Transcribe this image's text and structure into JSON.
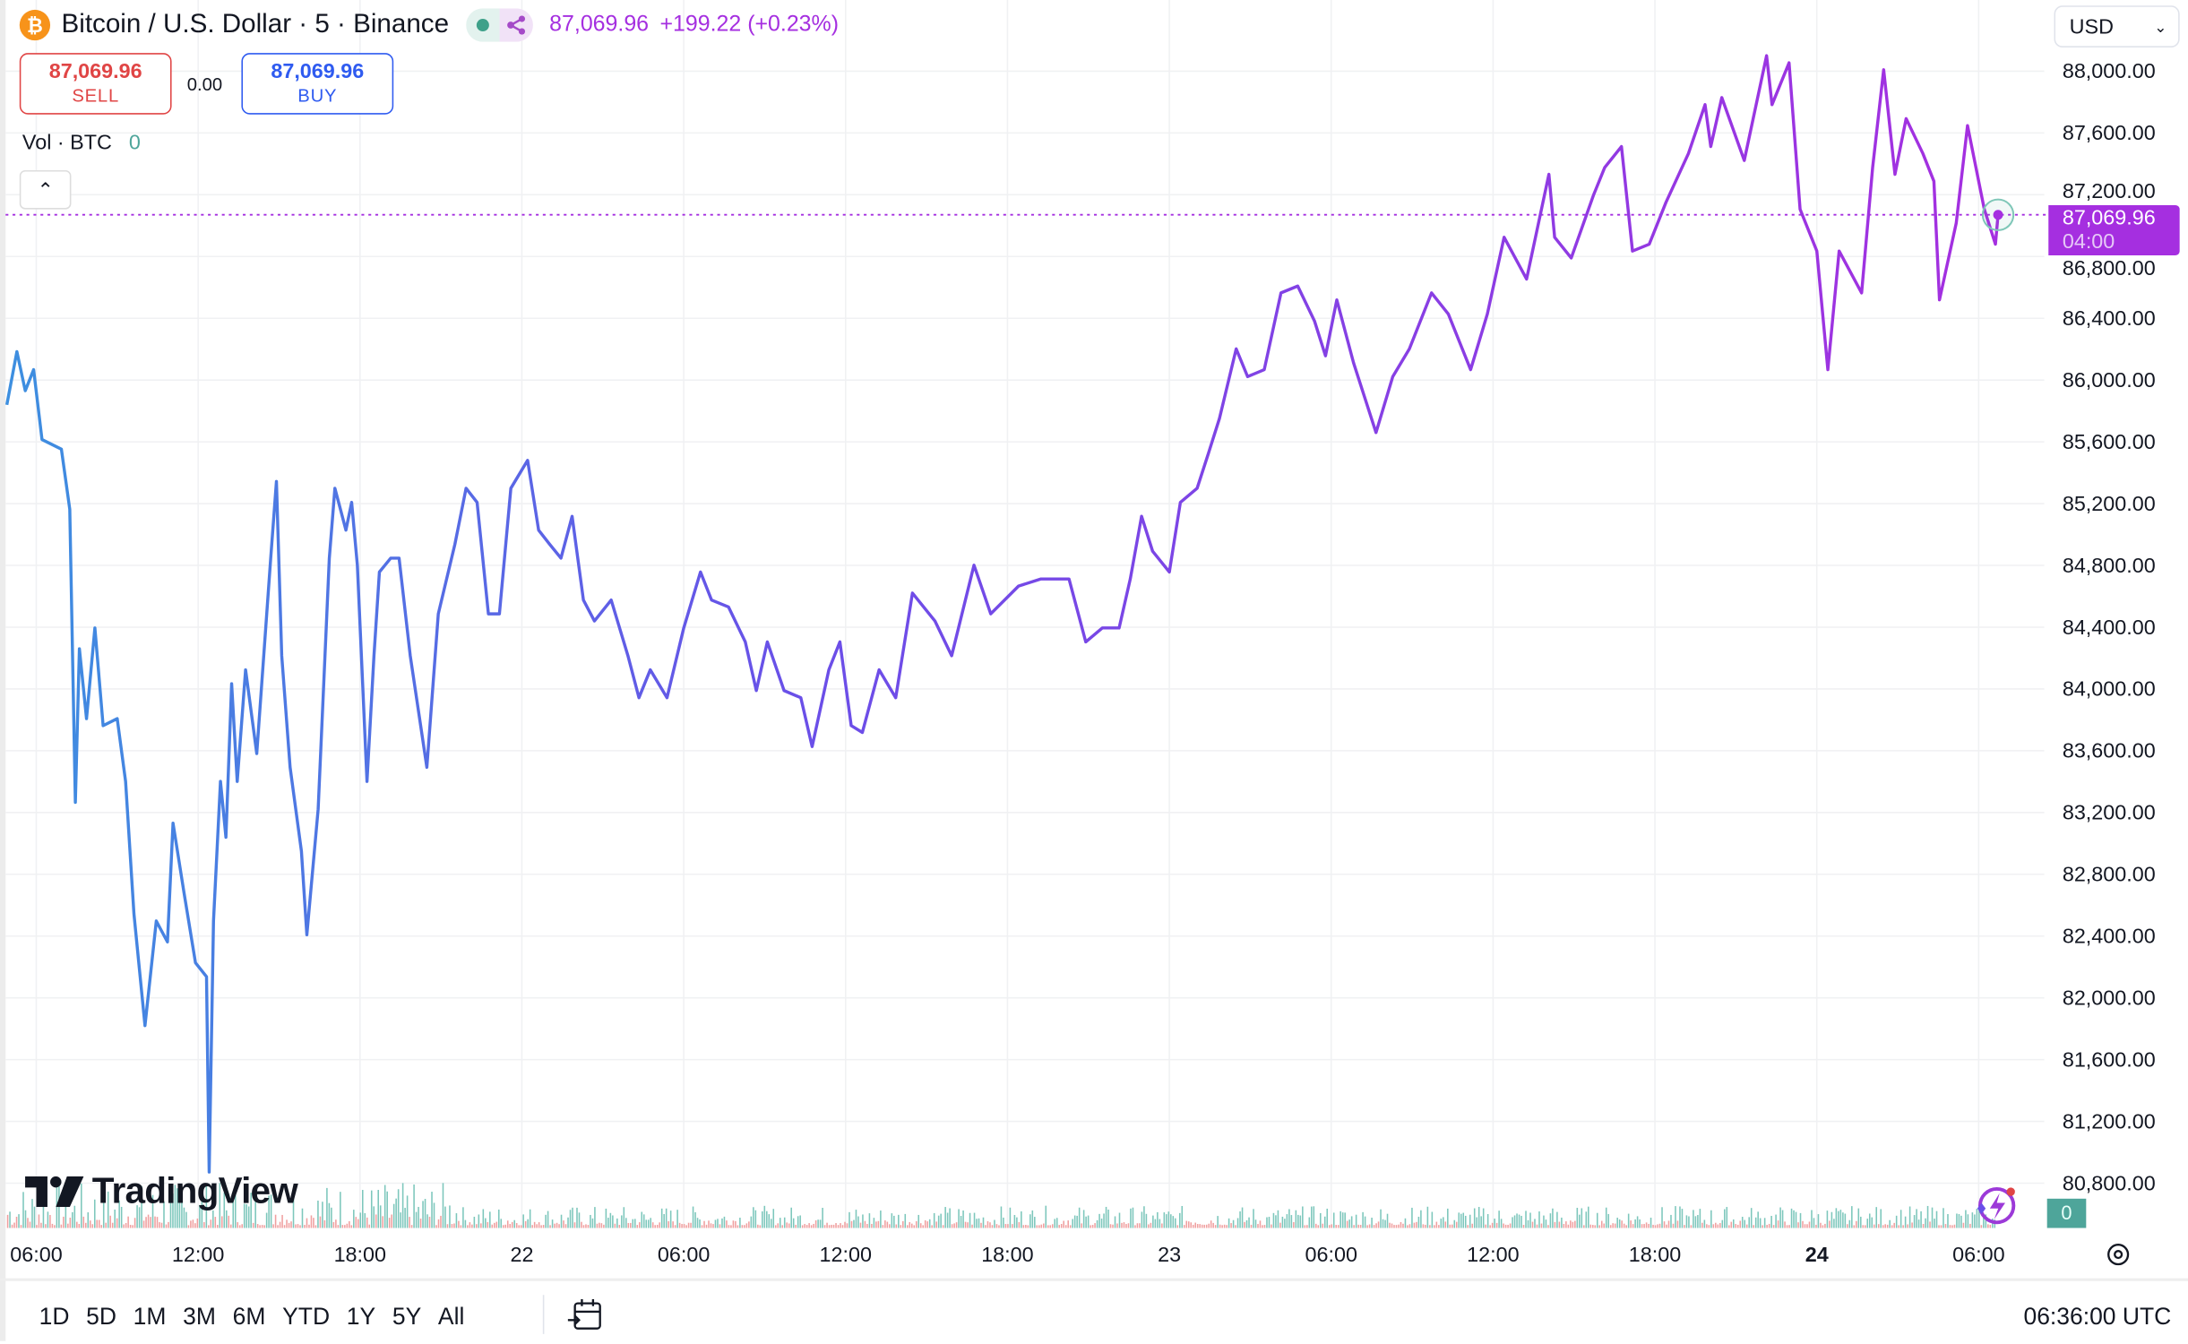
{
  "header": {
    "symbol_title": "Bitcoin / U.S. Dollar · 5 · Binance",
    "coin_glyph": "₿",
    "last_price": "87,069.96",
    "change": "+199.22 (+0.23%)"
  },
  "trade": {
    "sell_price": "87,069.96",
    "sell_label": "SELL",
    "spread": "0.00",
    "buy_price": "87,069.96",
    "buy_label": "BUY"
  },
  "volume_legend": {
    "label": "Vol · BTC",
    "value": "0"
  },
  "currency": "USD",
  "price_tag": {
    "price": "87,069.96",
    "countdown": "04:00"
  },
  "volume_tag": "0",
  "brand": "TradingView",
  "ranges": [
    "1D",
    "5D",
    "1M",
    "3M",
    "6M",
    "YTD",
    "1Y",
    "5Y",
    "All"
  ],
  "clock": "06:36:00 UTC",
  "colors": {
    "line_start": "#3d8fe0",
    "line_mid": "#6a4fe8",
    "line_end": "#a52fe0",
    "sell": "#e04545",
    "buy": "#2f5bf0",
    "vol_up": "#7dc7bc",
    "vol_down": "#f0a0a0"
  },
  "chart_data": {
    "type": "line",
    "title": "Bitcoin / U.S. Dollar · 5 · Binance",
    "x_unit": "hours since Mar 21 06:00 UTC",
    "y_axis_ticks": [
      "88,000.00",
      "87,600.00",
      "87,200.00",
      "86,800.00",
      "86,400.00",
      "86,000.00",
      "85,600.00",
      "85,200.00",
      "84,800.00",
      "84,400.00",
      "84,000.00",
      "83,600.00",
      "83,200.00",
      "82,800.00",
      "82,400.00",
      "82,000.00",
      "81,600.00",
      "81,200.00",
      "80,800.00"
    ],
    "y_tick_values": [
      88000,
      87600,
      87200,
      86800,
      86400,
      86000,
      85600,
      85200,
      84800,
      84400,
      84000,
      83600,
      83200,
      82800,
      82400,
      82000,
      81600,
      81200,
      80800
    ],
    "x_ticks": [
      {
        "label": "06:00",
        "h": 0
      },
      {
        "label": "12:00",
        "h": 6
      },
      {
        "label": "18:00",
        "h": 12
      },
      {
        "label": "22",
        "h": 18,
        "bold": false
      },
      {
        "label": "06:00",
        "h": 24
      },
      {
        "label": "12:00",
        "h": 30
      },
      {
        "label": "18:00",
        "h": 36
      },
      {
        "label": "23",
        "h": 42
      },
      {
        "label": "06:00",
        "h": 48
      },
      {
        "label": "12:00",
        "h": 54
      },
      {
        "label": "18:00",
        "h": 60
      },
      {
        "label": "24",
        "h": 66,
        "bold": true
      },
      {
        "label": "06:00",
        "h": 72
      }
    ],
    "ylim": [
      80600,
      88200
    ],
    "last_value": 87069.96,
    "points": [
      [
        -1.09,
        85840
      ],
      [
        -0.72,
        86184
      ],
      [
        -0.41,
        85931
      ],
      [
        -0.1,
        86067
      ],
      [
        0.21,
        85615
      ],
      [
        0.93,
        85552
      ],
      [
        1.24,
        85163
      ],
      [
        1.45,
        83266
      ],
      [
        1.6,
        84260
      ],
      [
        1.86,
        83808
      ],
      [
        2.17,
        84395
      ],
      [
        2.48,
        83763
      ],
      [
        3.0,
        83808
      ],
      [
        3.31,
        83401
      ],
      [
        3.62,
        82543
      ],
      [
        4.03,
        81820
      ],
      [
        4.45,
        82498
      ],
      [
        4.86,
        82362
      ],
      [
        5.07,
        83131
      ],
      [
        5.48,
        82679
      ],
      [
        5.9,
        82227
      ],
      [
        6.31,
        82137
      ],
      [
        6.41,
        80872
      ],
      [
        6.57,
        82498
      ],
      [
        6.83,
        83401
      ],
      [
        7.03,
        83040
      ],
      [
        7.24,
        84034
      ],
      [
        7.45,
        83401
      ],
      [
        7.76,
        84124
      ],
      [
        8.17,
        83582
      ],
      [
        8.69,
        84847
      ],
      [
        8.9,
        85344
      ],
      [
        9.1,
        84215
      ],
      [
        9.41,
        83492
      ],
      [
        9.83,
        82950
      ],
      [
        10.03,
        82408
      ],
      [
        10.45,
        83221
      ],
      [
        10.86,
        84847
      ],
      [
        11.07,
        85299
      ],
      [
        11.48,
        85028
      ],
      [
        11.69,
        85208
      ],
      [
        11.9,
        84802
      ],
      [
        12.26,
        83401
      ],
      [
        12.52,
        84215
      ],
      [
        12.72,
        84757
      ],
      [
        13.14,
        84847
      ],
      [
        13.45,
        84847
      ],
      [
        13.86,
        84215
      ],
      [
        14.48,
        83492
      ],
      [
        14.9,
        84486
      ],
      [
        15.52,
        84937
      ],
      [
        15.93,
        85299
      ],
      [
        16.34,
        85208
      ],
      [
        16.76,
        84486
      ],
      [
        17.17,
        84486
      ],
      [
        17.59,
        85299
      ],
      [
        18.21,
        85480
      ],
      [
        18.62,
        85028
      ],
      [
        19.03,
        84937
      ],
      [
        19.45,
        84847
      ],
      [
        19.86,
        85118
      ],
      [
        20.28,
        84576
      ],
      [
        20.69,
        84440
      ],
      [
        21.31,
        84576
      ],
      [
        21.93,
        84215
      ],
      [
        22.34,
        83943
      ],
      [
        22.76,
        84124
      ],
      [
        23.38,
        83943
      ],
      [
        24.0,
        84395
      ],
      [
        24.62,
        84757
      ],
      [
        25.03,
        84576
      ],
      [
        25.66,
        84531
      ],
      [
        26.28,
        84305
      ],
      [
        26.69,
        83989
      ],
      [
        27.1,
        84305
      ],
      [
        27.72,
        83989
      ],
      [
        28.34,
        83943
      ],
      [
        28.76,
        83627
      ],
      [
        29.38,
        84124
      ],
      [
        29.79,
        84305
      ],
      [
        30.21,
        83763
      ],
      [
        30.62,
        83718
      ],
      [
        31.24,
        84124
      ],
      [
        31.86,
        83943
      ],
      [
        32.48,
        84621
      ],
      [
        33.31,
        84440
      ],
      [
        33.93,
        84215
      ],
      [
        34.76,
        84802
      ],
      [
        35.38,
        84486
      ],
      [
        36.41,
        84666
      ],
      [
        37.24,
        84712
      ],
      [
        38.28,
        84712
      ],
      [
        38.9,
        84305
      ],
      [
        39.52,
        84395
      ],
      [
        40.14,
        84395
      ],
      [
        40.55,
        84712
      ],
      [
        40.97,
        85118
      ],
      [
        41.38,
        84892
      ],
      [
        42.0,
        84757
      ],
      [
        42.41,
        85208
      ],
      [
        43.03,
        85299
      ],
      [
        43.45,
        85525
      ],
      [
        43.86,
        85751
      ],
      [
        44.48,
        86202
      ],
      [
        44.9,
        86022
      ],
      [
        45.52,
        86067
      ],
      [
        46.14,
        86564
      ],
      [
        46.76,
        86609
      ],
      [
        47.38,
        86383
      ],
      [
        47.79,
        86157
      ],
      [
        48.21,
        86519
      ],
      [
        48.83,
        86112
      ],
      [
        49.66,
        85660
      ],
      [
        50.28,
        86022
      ],
      [
        50.9,
        86202
      ],
      [
        51.72,
        86564
      ],
      [
        52.34,
        86428
      ],
      [
        53.17,
        86067
      ],
      [
        53.79,
        86428
      ],
      [
        54.41,
        86925
      ],
      [
        55.24,
        86654
      ],
      [
        56.07,
        87332
      ],
      [
        56.28,
        86925
      ],
      [
        56.9,
        86790
      ],
      [
        57.72,
        87196
      ],
      [
        58.14,
        87377
      ],
      [
        58.76,
        87512
      ],
      [
        59.17,
        86835
      ],
      [
        59.79,
        86880
      ],
      [
        60.41,
        87151
      ],
      [
        61.24,
        87467
      ],
      [
        61.86,
        87783
      ],
      [
        62.07,
        87512
      ],
      [
        62.48,
        87829
      ],
      [
        63.31,
        87422
      ],
      [
        64.14,
        88100
      ],
      [
        64.34,
        87783
      ],
      [
        64.97,
        88054
      ],
      [
        65.38,
        87106
      ],
      [
        66.0,
        86835
      ],
      [
        66.41,
        86067
      ],
      [
        66.83,
        86835
      ],
      [
        67.66,
        86564
      ],
      [
        68.07,
        87377
      ],
      [
        68.48,
        88009
      ],
      [
        68.9,
        87332
      ],
      [
        69.31,
        87693
      ],
      [
        69.93,
        87467
      ],
      [
        70.34,
        87287
      ],
      [
        70.55,
        86519
      ],
      [
        71.17,
        87016
      ],
      [
        71.59,
        87648
      ],
      [
        72.21,
        87106
      ],
      [
        72.62,
        86880
      ],
      [
        72.72,
        87070
      ]
    ]
  }
}
